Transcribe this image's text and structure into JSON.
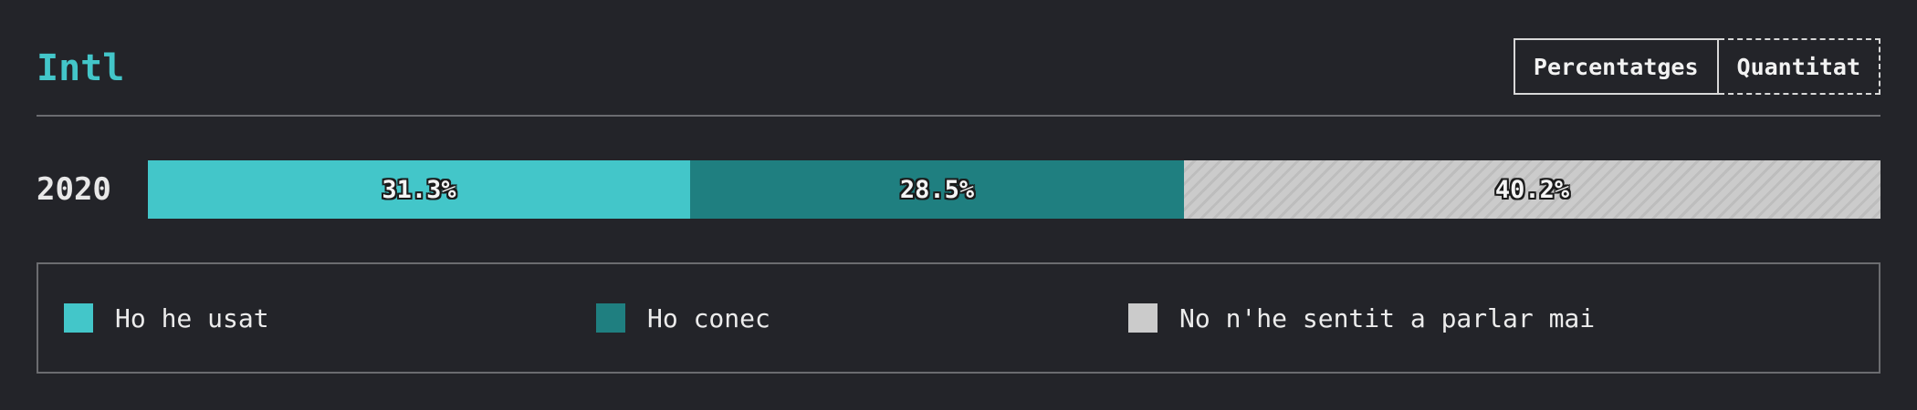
{
  "header": {
    "title": "Intl",
    "toggle": {
      "active_label": "Percentatges",
      "inactive_label": "Quantitat"
    }
  },
  "chart_data": {
    "type": "bar",
    "orientation": "horizontal-stacked",
    "categories": [
      "2020"
    ],
    "series": [
      {
        "name": "Ho he usat",
        "values": [
          31.3
        ],
        "label": "31.3%",
        "color": "#43c6c9"
      },
      {
        "name": "Ho conec",
        "values": [
          28.5
        ],
        "label": "28.5%",
        "color": "#1f7f80"
      },
      {
        "name": "No n'he sentit a parlar mai",
        "values": [
          40.2
        ],
        "label": "40.2%",
        "color": "#cbcbcb",
        "pattern": "hatched"
      }
    ],
    "unit": "%",
    "xlim": [
      0,
      100
    ],
    "legend_placement": "bottom"
  }
}
